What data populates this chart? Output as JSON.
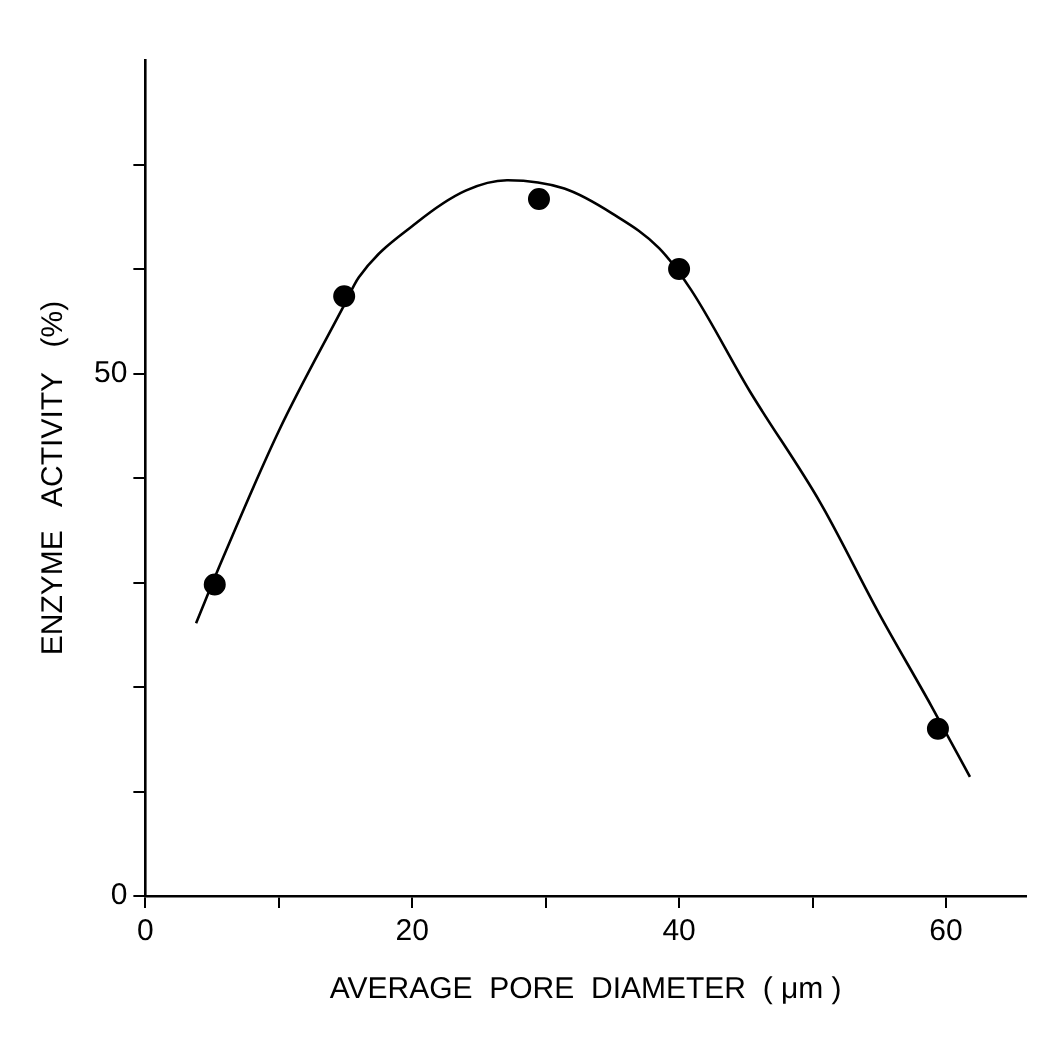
{
  "chart_data": {
    "type": "scatter",
    "xlabel": "AVERAGE  PORE  DIAMETER  ( μm )",
    "ylabel": "ENZYME   ACTIVITY   (%)",
    "xlim": [
      0,
      66
    ],
    "xticks": [
      0,
      {
        "value": 10,
        "label": null
      },
      20,
      {
        "value": 30,
        "label": null
      },
      40,
      {
        "value": 50,
        "label": null
      },
      60
    ],
    "ylim": [
      0,
      80
    ],
    "yticks": [
      0,
      {
        "value": 10,
        "label": null
      },
      {
        "value": 20,
        "label": null
      },
      {
        "value": 30,
        "label": null
      },
      {
        "value": 40,
        "label": null
      },
      50,
      {
        "value": 60,
        "label": null
      },
      {
        "value": 70,
        "label": null
      }
    ],
    "grid": false,
    "legend": false,
    "marker": "circle",
    "series": [
      {
        "color": "#000000",
        "x": [
          5.2,
          14.9,
          29.5,
          40,
          59.4
        ],
        "values": [
          29.8,
          57.4,
          66.7,
          60,
          16
        ]
      },
      {
        "type": "line",
        "color": "#000000",
        "marker": "none",
        "x": [
          3.8,
          5.7,
          10,
          14.8,
          16,
          20.3,
          24,
          27.1,
          31.4,
          35,
          38.5,
          40.9,
          45.3,
          50.6,
          55,
          58.9,
          61.8
        ],
        "values": [
          26.1,
          32,
          44.5,
          56.3,
          59.2,
          64.4,
          67.5,
          68.5,
          67.7,
          65.3,
          62,
          58,
          48.3,
          37.6,
          27,
          18.2,
          11.4
        ]
      }
    ]
  }
}
